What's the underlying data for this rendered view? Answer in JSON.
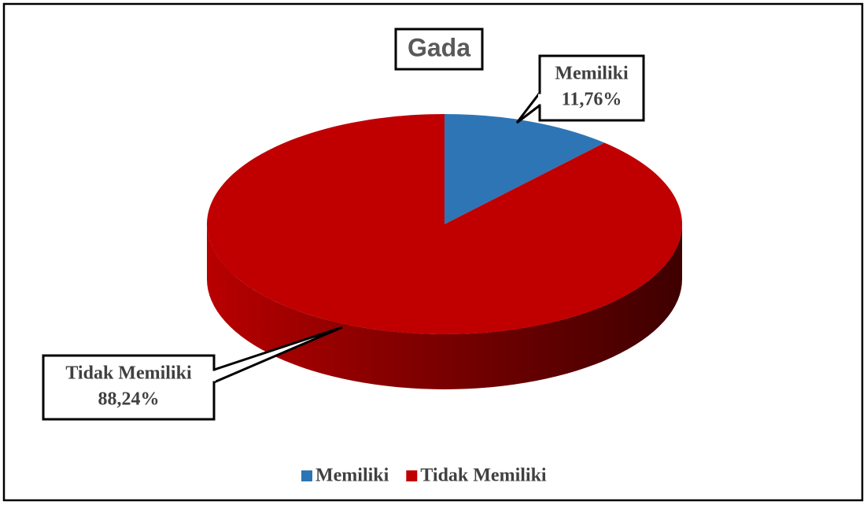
{
  "chart_data": {
    "type": "pie",
    "title": "Gada",
    "categories": [
      "Memiliki",
      "Tidak Memiliki"
    ],
    "values": [
      11.76,
      88.24
    ],
    "value_labels": [
      "11,76%",
      "88,24%"
    ],
    "colors": [
      "#2e75b6",
      "#c00000"
    ],
    "legend": "bottom"
  }
}
